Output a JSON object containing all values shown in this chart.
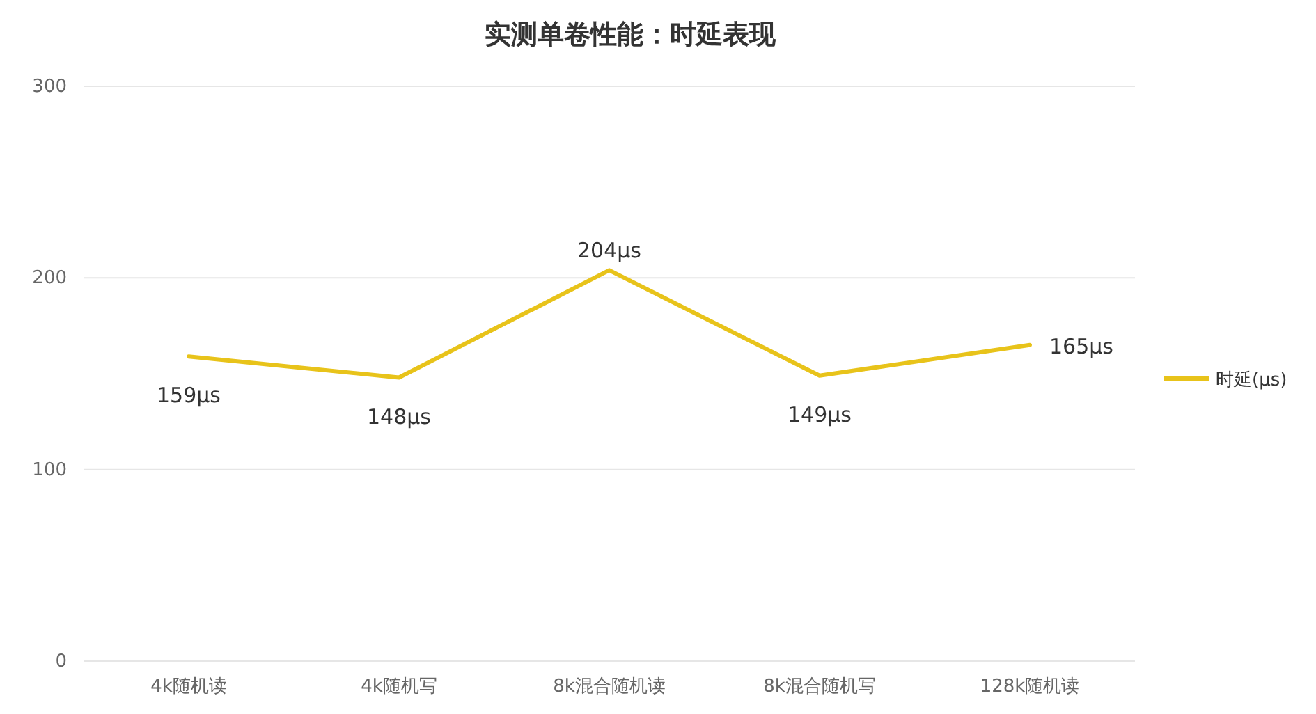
{
  "chart_data": {
    "type": "line",
    "title": "实测单卷性能：时延表现",
    "categories": [
      "4k随机读",
      "4k随机写",
      "8k混合随机读",
      "8k混合随机写",
      "128k随机读"
    ],
    "series": [
      {
        "name": "时延(μs)",
        "color": "#e8c31a",
        "values": [
          159,
          148,
          204,
          149,
          165
        ],
        "value_labels": [
          "159μs",
          "148μs",
          "204μs",
          "149μs",
          "165μs"
        ]
      }
    ],
    "ylim": [
      0,
      300
    ],
    "yticks": [
      0,
      100,
      200,
      300
    ],
    "grid": "y",
    "legend": "right",
    "marker": "none",
    "line_style": "solid"
  }
}
